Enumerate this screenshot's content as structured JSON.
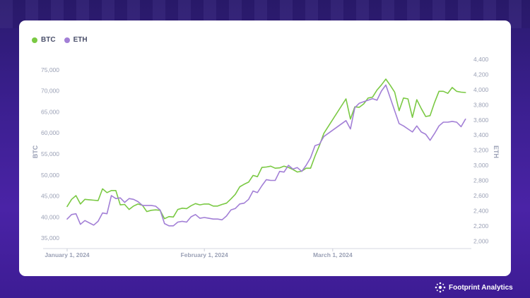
{
  "brand": {
    "name": "Footprint Analytics",
    "icon": "footprint-logo-icon"
  },
  "colors": {
    "btc": "#7ac943",
    "eth": "#a27fd6",
    "axis_text": "#9aa0b5",
    "grid": "#e8e9f0"
  },
  "chart_data": {
    "type": "line",
    "legend": [
      "BTC",
      "ETH"
    ],
    "legend_position": "top-left",
    "x_ticks": [
      "January 1, 2024",
      "February 1, 2024",
      "March 1, 2024"
    ],
    "x_range": [
      "2024-01-01",
      "2024-04-01"
    ],
    "y_left": {
      "label": "BTC",
      "ticks": [
        "75,000",
        "70,000",
        "65,000",
        "60,000",
        "55,000",
        "50,000",
        "45,000",
        "40,000",
        "35,000"
      ],
      "range": [
        32500,
        77500
      ]
    },
    "y_right": {
      "label": "ETH",
      "ticks": [
        "4,400",
        "4,200",
        "4,000",
        "3,800",
        "3,600",
        "3,400",
        "3,200",
        "3,000",
        "2,800",
        "2,600",
        "2,400",
        "2,200",
        "2,000"
      ],
      "range": [
        1900,
        4400
      ]
    },
    "grid": false,
    "series": [
      {
        "name": "BTC",
        "axis": "left",
        "x": [
          "2024-01-01",
          "2024-01-02",
          "2024-01-03",
          "2024-01-04",
          "2024-01-05",
          "2024-01-06",
          "2024-01-07",
          "2024-01-08",
          "2024-01-09",
          "2024-01-10",
          "2024-01-11",
          "2024-01-12",
          "2024-01-13",
          "2024-01-14",
          "2024-01-15",
          "2024-01-16",
          "2024-01-17",
          "2024-01-18",
          "2024-01-19",
          "2024-01-20",
          "2024-01-21",
          "2024-01-22",
          "2024-01-23",
          "2024-01-24",
          "2024-01-25",
          "2024-01-26",
          "2024-01-27",
          "2024-01-28",
          "2024-01-29",
          "2024-01-30",
          "2024-01-31",
          "2024-02-01",
          "2024-02-02",
          "2024-02-03",
          "2024-02-04",
          "2024-02-05",
          "2024-02-06",
          "2024-02-07",
          "2024-02-08",
          "2024-02-09",
          "2024-02-10",
          "2024-02-11",
          "2024-02-12",
          "2024-02-13",
          "2024-02-14",
          "2024-02-15",
          "2024-02-16",
          "2024-02-17",
          "2024-02-18",
          "2024-02-19",
          "2024-02-20",
          "2024-02-21",
          "2024-02-22",
          "2024-02-23",
          "2024-02-24",
          "2024-02-25",
          "2024-02-26",
          "2024-02-27",
          "2024-02-28",
          "2024-03-04",
          "2024-03-05",
          "2024-03-06",
          "2024-03-07",
          "2024-03-08",
          "2024-03-09",
          "2024-03-10",
          "2024-03-11",
          "2024-03-12",
          "2024-03-13",
          "2024-03-14",
          "2024-03-15",
          "2024-03-16",
          "2024-03-17",
          "2024-03-18",
          "2024-03-19",
          "2024-03-20",
          "2024-03-21",
          "2024-03-22",
          "2024-03-23",
          "2024-03-24",
          "2024-03-25",
          "2024-03-26",
          "2024-03-27",
          "2024-03-28",
          "2024-03-29",
          "2024-03-30",
          "2024-03-31"
        ],
        "values": [
          42500,
          44200,
          45100,
          43100,
          44200,
          44100,
          44000,
          43900,
          46700,
          45800,
          46300,
          46300,
          42900,
          43000,
          41800,
          42600,
          43100,
          42800,
          41300,
          41600,
          41700,
          41600,
          39600,
          40100,
          40000,
          41800,
          42100,
          42000,
          42700,
          43200,
          42900,
          43100,
          43100,
          42600,
          42600,
          43000,
          43300,
          44300,
          45400,
          47200,
          47800,
          48300,
          49900,
          49600,
          51800,
          51900,
          52100,
          51600,
          51700,
          52100,
          51800,
          51300,
          50700,
          50900,
          51600,
          51600,
          54500,
          57000,
          59900,
          68100,
          63300,
          66200,
          66100,
          66900,
          68300,
          68500,
          70200,
          71400,
          72800,
          71300,
          69700,
          65300,
          68300,
          68100,
          63700,
          67900,
          65800,
          63900,
          64100,
          67200,
          69900,
          69900,
          69400,
          70800,
          69900,
          69700,
          69600
        ]
      },
      {
        "name": "ETH",
        "axis": "right",
        "x": [
          "2024-01-01",
          "2024-01-02",
          "2024-01-03",
          "2024-01-04",
          "2024-01-05",
          "2024-01-06",
          "2024-01-07",
          "2024-01-08",
          "2024-01-09",
          "2024-01-10",
          "2024-01-11",
          "2024-01-12",
          "2024-01-13",
          "2024-01-14",
          "2024-01-15",
          "2024-01-16",
          "2024-01-17",
          "2024-01-18",
          "2024-01-19",
          "2024-01-20",
          "2024-01-21",
          "2024-01-22",
          "2024-01-23",
          "2024-01-24",
          "2024-01-25",
          "2024-01-26",
          "2024-01-27",
          "2024-01-28",
          "2024-01-29",
          "2024-01-30",
          "2024-01-31",
          "2024-02-01",
          "2024-02-02",
          "2024-02-03",
          "2024-02-04",
          "2024-02-05",
          "2024-02-06",
          "2024-02-07",
          "2024-02-08",
          "2024-02-09",
          "2024-02-10",
          "2024-02-11",
          "2024-02-12",
          "2024-02-13",
          "2024-02-14",
          "2024-02-15",
          "2024-02-16",
          "2024-02-17",
          "2024-02-18",
          "2024-02-19",
          "2024-02-20",
          "2024-02-21",
          "2024-02-22",
          "2024-02-23",
          "2024-02-24",
          "2024-02-25",
          "2024-02-26",
          "2024-02-27",
          "2024-02-28",
          "2024-03-04",
          "2024-03-05",
          "2024-03-06",
          "2024-03-07",
          "2024-03-08",
          "2024-03-09",
          "2024-03-10",
          "2024-03-11",
          "2024-03-12",
          "2024-03-13",
          "2024-03-14",
          "2024-03-15",
          "2024-03-16",
          "2024-03-17",
          "2024-03-18",
          "2024-03-19",
          "2024-03-20",
          "2024-03-21",
          "2024-03-22",
          "2024-03-23",
          "2024-03-24",
          "2024-03-25",
          "2024-03-26",
          "2024-03-27",
          "2024-03-28",
          "2024-03-29",
          "2024-03-30",
          "2024-03-31"
        ],
        "values": [
          2290,
          2350,
          2360,
          2220,
          2270,
          2240,
          2210,
          2260,
          2370,
          2360,
          2600,
          2560,
          2570,
          2510,
          2560,
          2550,
          2520,
          2470,
          2470,
          2470,
          2460,
          2410,
          2230,
          2200,
          2200,
          2250,
          2260,
          2250,
          2320,
          2350,
          2300,
          2310,
          2300,
          2290,
          2290,
          2280,
          2330,
          2410,
          2430,
          2490,
          2500,
          2550,
          2660,
          2640,
          2730,
          2810,
          2800,
          2800,
          2920,
          2910,
          3000,
          2950,
          2970,
          2920,
          3000,
          3100,
          3260,
          3280,
          3380,
          3590,
          3480,
          3760,
          3820,
          3840,
          3860,
          3880,
          3860,
          3980,
          4060,
          3890,
          3720,
          3550,
          3520,
          3480,
          3440,
          3520,
          3440,
          3410,
          3330,
          3420,
          3520,
          3570,
          3570,
          3580,
          3570,
          3510,
          3610
        ]
      }
    ]
  }
}
